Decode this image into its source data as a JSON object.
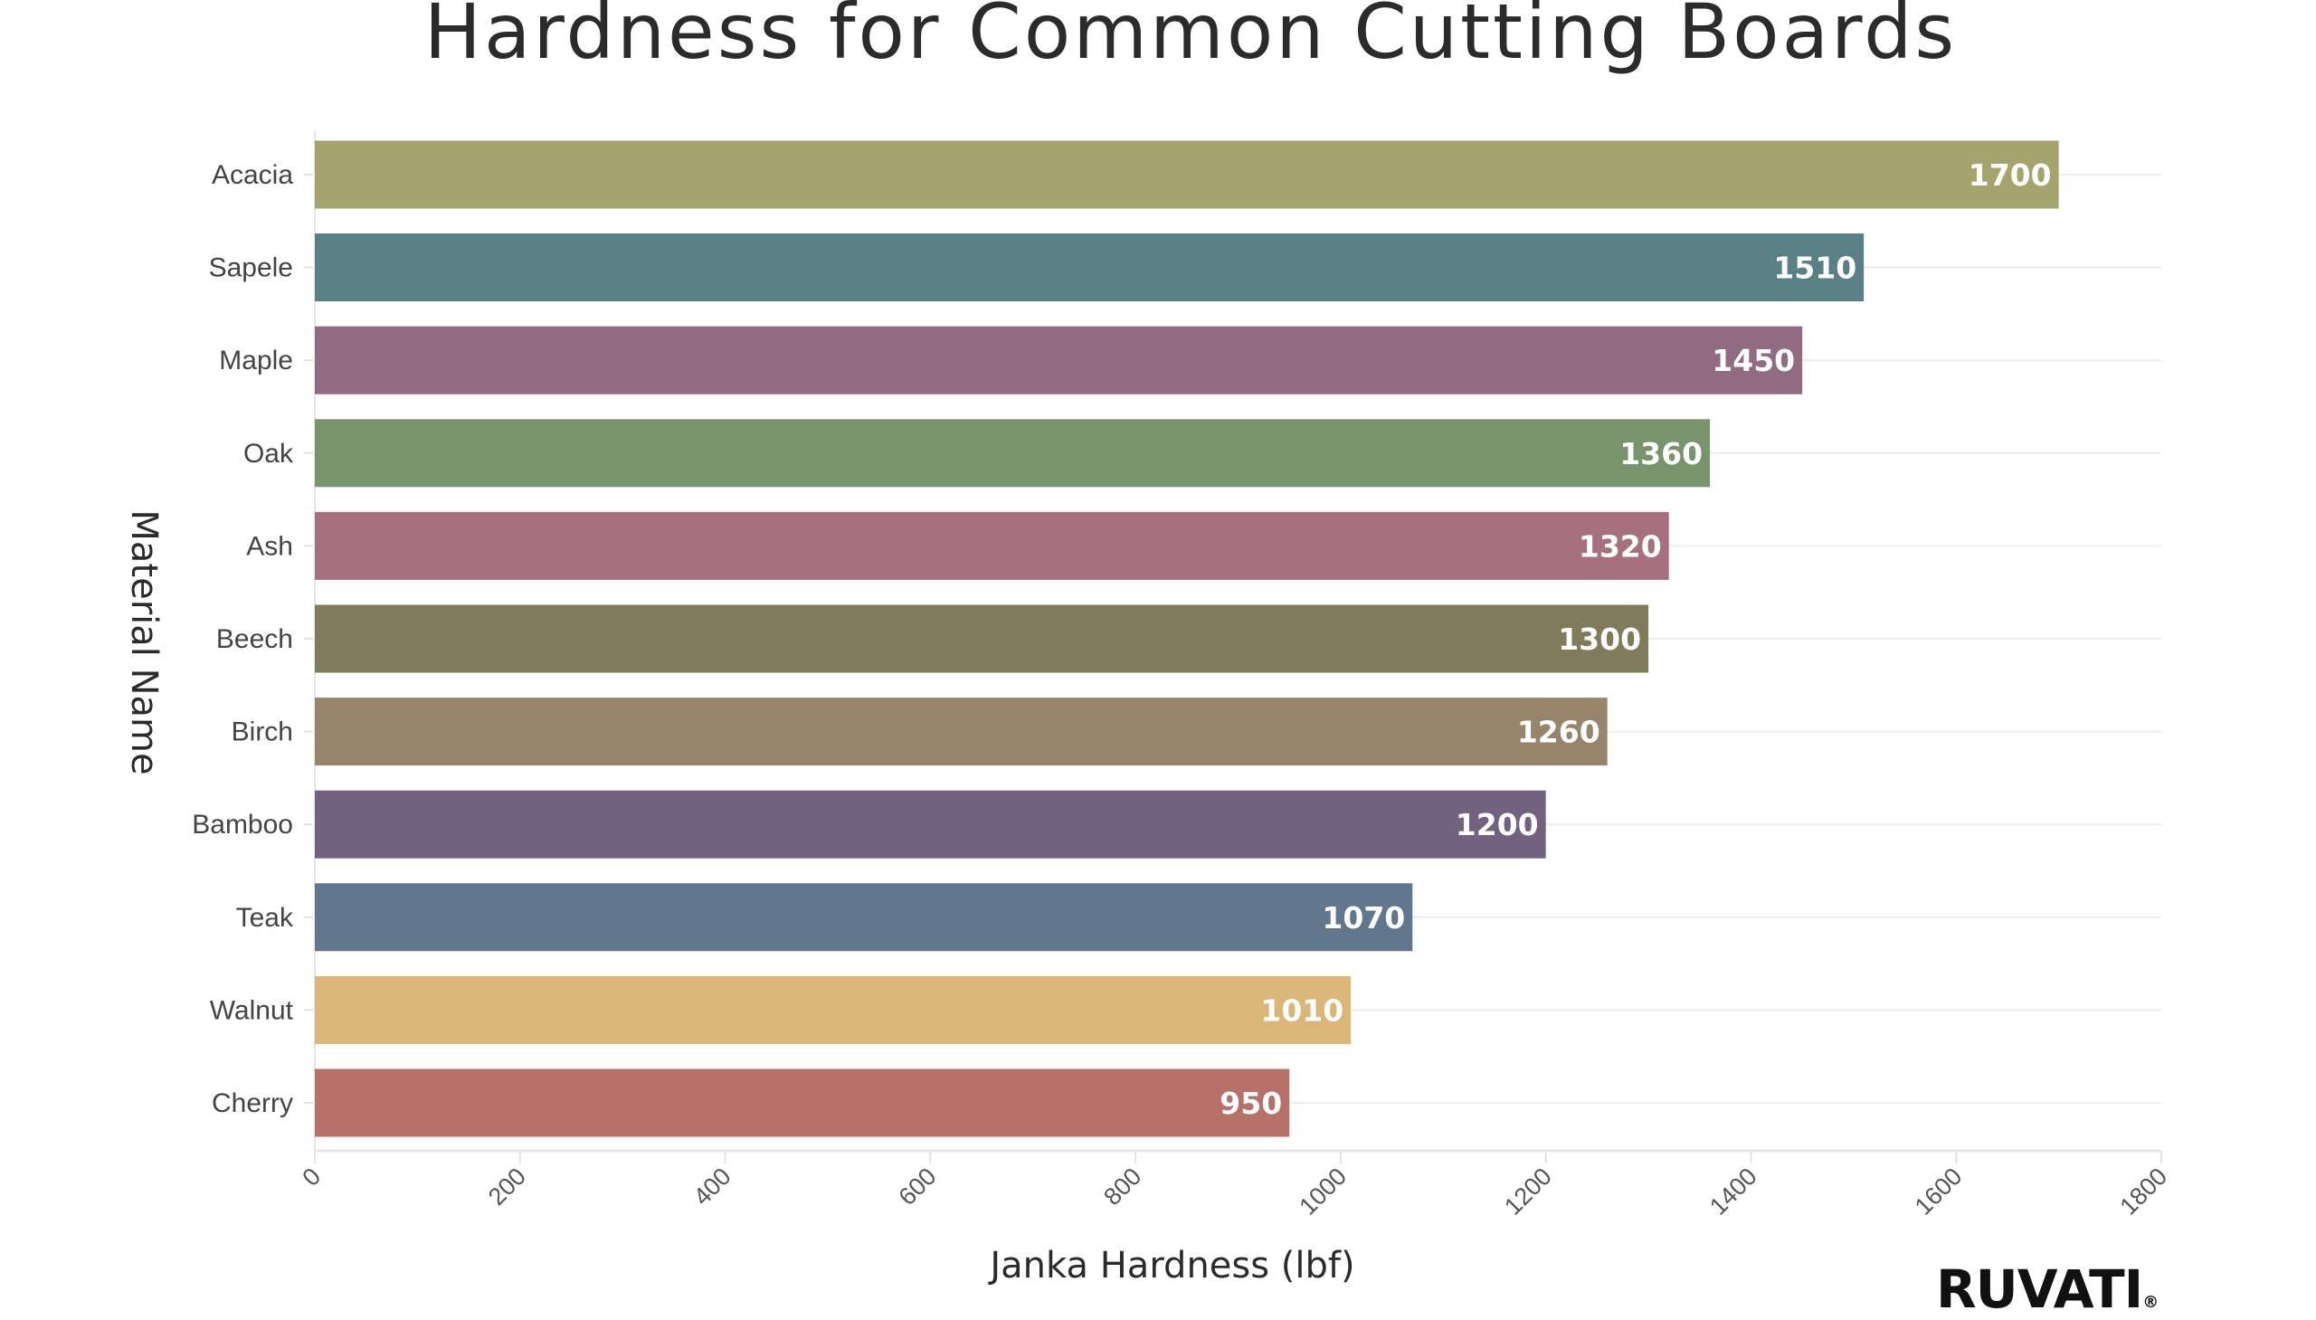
{
  "chart_data": {
    "type": "bar",
    "orientation": "horizontal",
    "title": "Hardness for Common Cutting Boards",
    "xlabel": "Janka Hardness (lbf)",
    "ylabel": "Material Name",
    "categories": [
      "Acacia",
      "Sapele",
      "Maple",
      "Oak",
      "Ash",
      "Beech",
      "Birch",
      "Bamboo",
      "Teak",
      "Walnut",
      "Cherry"
    ],
    "values": [
      1700,
      1510,
      1450,
      1360,
      1320,
      1300,
      1260,
      1200,
      1070,
      1010,
      950
    ],
    "colors": [
      "#a5a46e",
      "#598085",
      "#906b82",
      "#78946d",
      "#a7707f",
      "#807b5b",
      "#97856b",
      "#72617f",
      "#62778d",
      "#dbb679",
      "#b87169"
    ],
    "xlim": [
      0,
      1800
    ],
    "xticks": [
      0,
      200,
      400,
      600,
      800,
      1000,
      1200,
      1400,
      1600,
      1800
    ],
    "grid": true,
    "data_labels": true,
    "legend": "none"
  },
  "logo": {
    "text": "RUVATI",
    "mark": "®"
  }
}
